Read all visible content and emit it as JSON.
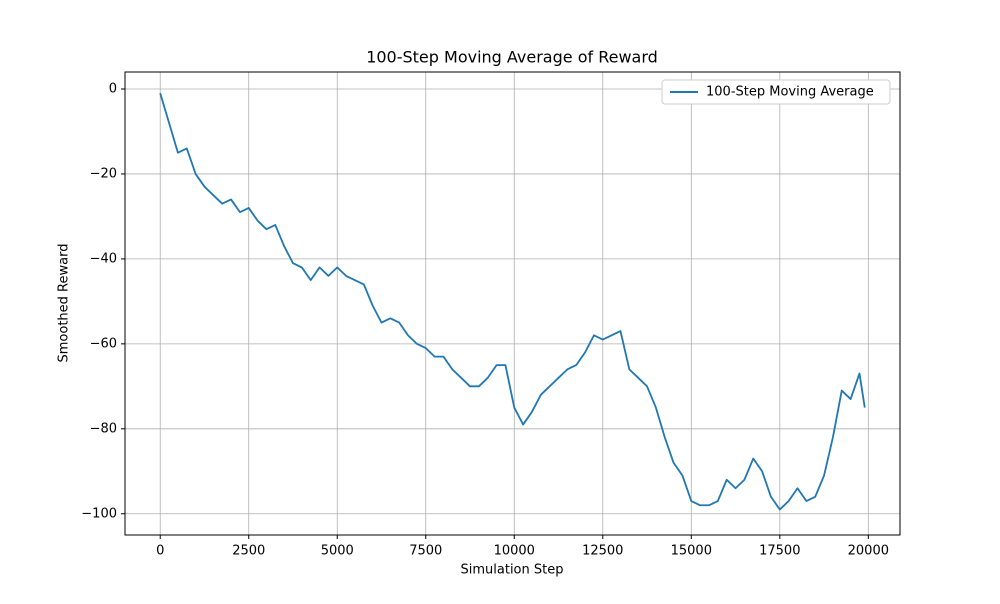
{
  "chart_data": {
    "type": "line",
    "title": "100-Step Moving Average of Reward",
    "xlabel": "Simulation Step",
    "ylabel": "Smoothed Reward",
    "x": [
      0,
      250,
      500,
      750,
      1000,
      1250,
      1500,
      1750,
      2000,
      2250,
      2500,
      2750,
      3000,
      3250,
      3500,
      3750,
      4000,
      4250,
      4500,
      4750,
      5000,
      5250,
      5500,
      5750,
      6000,
      6250,
      6500,
      6750,
      7000,
      7250,
      7500,
      7750,
      8000,
      8250,
      8500,
      8750,
      9000,
      9250,
      9500,
      9750,
      10000,
      10250,
      10500,
      10750,
      11000,
      11250,
      11500,
      11750,
      12000,
      12250,
      12500,
      12750,
      13000,
      13250,
      13500,
      13750,
      14000,
      14250,
      14500,
      14750,
      15000,
      15250,
      15500,
      15750,
      16000,
      16250,
      16500,
      16750,
      17000,
      17250,
      17500,
      17750,
      18000,
      18250,
      18500,
      18750,
      19000,
      19250,
      19500,
      19750,
      19900
    ],
    "series": [
      {
        "name": "100-Step Moving Average",
        "color": "#1f77b4",
        "values": [
          -1,
          -8,
          -15,
          -14,
          -20,
          -23,
          -25,
          -27,
          -26,
          -29,
          -28,
          -31,
          -33,
          -32,
          -37,
          -41,
          -42,
          -45,
          -42,
          -44,
          -42,
          -44,
          -45,
          -46,
          -51,
          -55,
          -54,
          -55,
          -58,
          -60,
          -61,
          -63,
          -63,
          -66,
          -68,
          -70,
          -70,
          -68,
          -65,
          -65,
          -75,
          -79,
          -76,
          -72,
          -70,
          -68,
          -66,
          -65,
          -62,
          -58,
          -59,
          -58,
          -57,
          -66,
          -68,
          -70,
          -75,
          -82,
          -88,
          -91,
          -97,
          -98,
          -98,
          -97,
          -92,
          -94,
          -92,
          -87,
          -90,
          -96,
          -99,
          -97,
          -94,
          -97,
          -96,
          -91,
          -82,
          -71,
          -73,
          -67,
          -75
        ]
      }
    ],
    "xlim": [
      -995,
      20895
    ],
    "ylim": [
      -105,
      4
    ],
    "xticks": [
      0,
      2500,
      5000,
      7500,
      10000,
      12500,
      15000,
      17500,
      20000
    ],
    "yticks": [
      {
        "value": -100,
        "label": "−100"
      },
      {
        "value": -80,
        "label": "−80"
      },
      {
        "value": -60,
        "label": "−60"
      },
      {
        "value": -40,
        "label": "−40"
      },
      {
        "value": -20,
        "label": "−20"
      },
      0
    ],
    "grid": true,
    "legend": "upper right"
  }
}
